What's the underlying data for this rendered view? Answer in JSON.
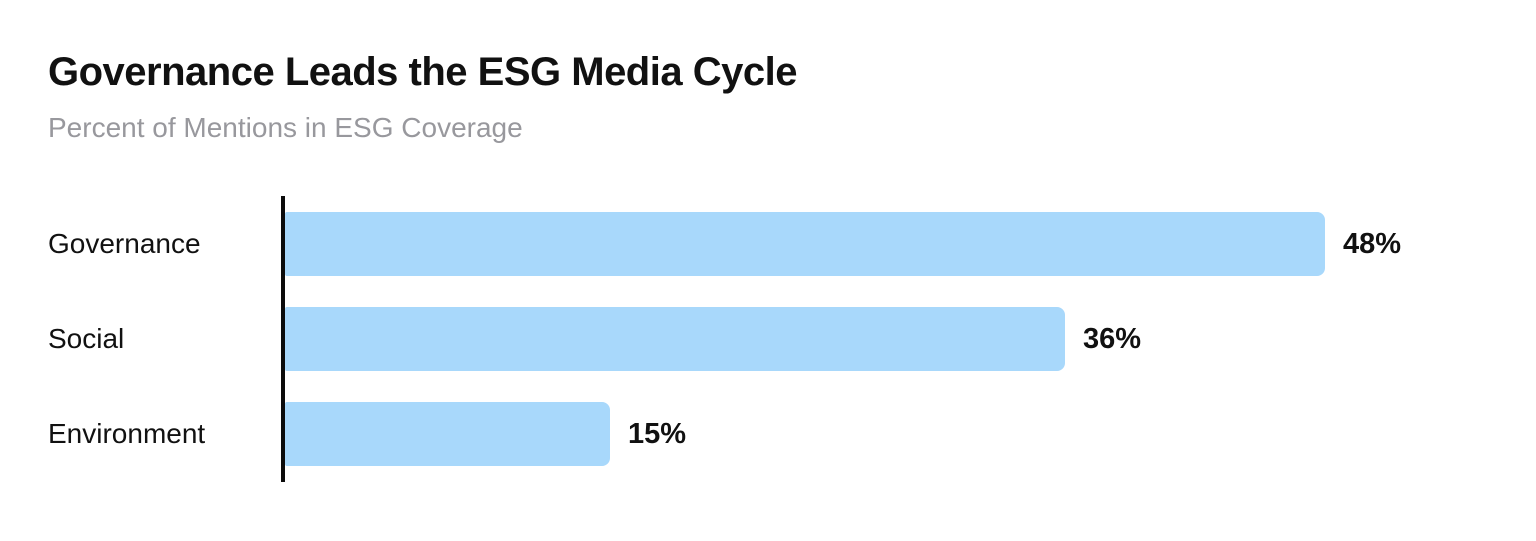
{
  "header": {
    "title": "Governance Leads the ESG Media Cycle",
    "subtitle": "Percent of Mentions in ESG Coverage"
  },
  "chart_data": {
    "type": "bar",
    "orientation": "horizontal",
    "title": "Governance Leads the ESG Media Cycle",
    "subtitle": "Percent of Mentions in ESG Coverage",
    "categories": [
      "Governance",
      "Social",
      "Environment"
    ],
    "values": [
      48,
      36,
      15
    ],
    "value_labels": [
      "48%",
      "36%",
      "15%"
    ],
    "xlabel": "",
    "ylabel": "",
    "xlim": [
      0,
      50
    ],
    "grid": false,
    "legend": false,
    "bar_color": "#a8d8fb",
    "axis_color": "#0b0b0b",
    "title_color": "#111111",
    "subtitle_color": "#98989d",
    "value_label_color": "#111111"
  }
}
